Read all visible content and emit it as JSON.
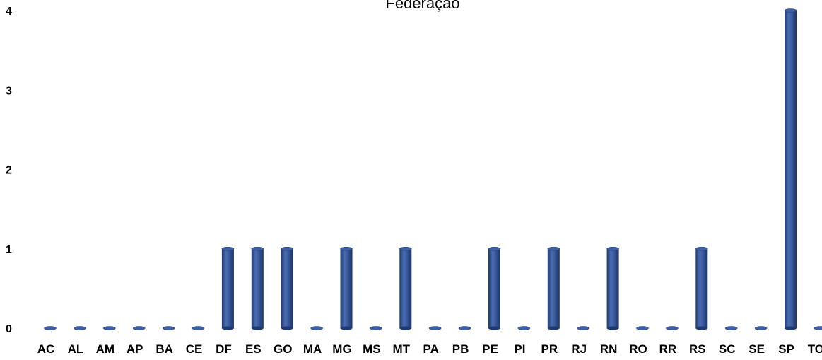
{
  "chart_data": {
    "type": "bar",
    "title": "Federação",
    "xlabel": "",
    "ylabel": "",
    "ylim": [
      0,
      4
    ],
    "yticks": [
      0,
      1,
      2,
      3,
      4
    ],
    "grid": false,
    "bar_color": "#2f4f8f",
    "categories": [
      "AC",
      "AL",
      "AM",
      "AP",
      "BA",
      "CE",
      "DF",
      "ES",
      "GO",
      "MA",
      "MG",
      "MS",
      "MT",
      "PA",
      "PB",
      "PE",
      "PI",
      "PR",
      "RJ",
      "RN",
      "RO",
      "RR",
      "RS",
      "SC",
      "SE",
      "SP",
      "TO"
    ],
    "values": [
      0,
      0,
      0,
      0,
      0,
      0,
      1,
      1,
      1,
      0,
      1,
      0,
      1,
      0,
      0,
      1,
      0,
      1,
      0,
      1,
      0,
      0,
      1,
      0,
      0,
      4,
      0
    ]
  }
}
